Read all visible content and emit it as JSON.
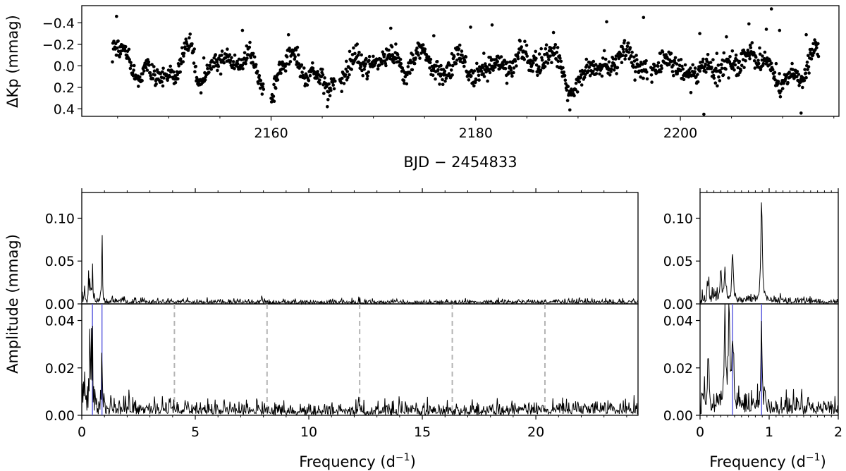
{
  "figure": {
    "lightcurve_ylabel": "ΔKp (mmag)",
    "lightcurve_xlabel": "BJD − 2454833",
    "amp_ylabel": "Amplitude (mmag)",
    "freq_xlabel_main": "Frequency (d⁻¹)",
    "freq_xlabel_zoom": "Frequency (d⁻¹)"
  },
  "chart_data": [
    {
      "type": "scatter",
      "panel": "lightcurve",
      "xlabel": "BJD − 2454833",
      "ylabel": "ΔKp (mmag)",
      "xlim": [
        2141.5,
        2215.5
      ],
      "ylim": [
        0.47,
        -0.56
      ],
      "y_inverted": true,
      "xticks": [
        2160,
        2180,
        2200
      ],
      "yticks": [
        -0.4,
        -0.2,
        0.0,
        0.2,
        0.4
      ],
      "ytick_labels": [
        "−0.4",
        "−0.2",
        "0.0",
        "0.2",
        "0.4"
      ],
      "marker_color": "#000000",
      "x_range_of_points": [
        2144.5,
        2213.5
      ],
      "anchor_points": {
        "x": [
          2144.5,
          2145.5,
          2147.0,
          2148.5,
          2150.5,
          2152.0,
          2153.0,
          2154.5,
          2156.0,
          2157.5,
          2159.0,
          2159.8,
          2161.0,
          2162.5,
          2164.0,
          2165.5,
          2167.5,
          2169.5,
          2171.0,
          2173.0,
          2175.0,
          2176.5,
          2178.5,
          2180.5,
          2182.0,
          2183.5,
          2185.5,
          2187.5,
          2189.0,
          2190.0,
          2191.5,
          2193.5,
          2195.5,
          2197.5,
          2199.5,
          2201.0,
          2202.5,
          2204.5,
          2206.5,
          2208.5,
          2210.0,
          2211.5,
          2213.5
        ],
        "y": [
          -0.16,
          -0.12,
          0.04,
          0.12,
          0.06,
          -0.14,
          0.08,
          0.0,
          -0.06,
          -0.08,
          0.15,
          0.27,
          0.02,
          -0.06,
          0.08,
          0.2,
          0.02,
          -0.06,
          -0.04,
          -0.02,
          -0.08,
          0.06,
          -0.04,
          0.06,
          0.0,
          -0.06,
          -0.04,
          -0.12,
          0.22,
          0.1,
          0.05,
          -0.05,
          -0.06,
          0.05,
          -0.08,
          0.16,
          -0.02,
          0.06,
          -0.12,
          -0.02,
          0.12,
          0.14,
          -0.22
        ]
      },
      "outliers": {
        "x": [
          2144.9,
          2157.2,
          2171.7,
          2175.9,
          2179.5,
          2181.6,
          2187.6,
          2192.8,
          2196.4,
          2201.9,
          2204.5,
          2206.7,
          2208.4,
          2208.9,
          2209.7,
          2212.3,
          2189.2,
          2211.8,
          2202.3,
          2165.5,
          2160.3
        ],
        "y": [
          -0.46,
          -0.33,
          -0.35,
          -0.28,
          -0.36,
          -0.38,
          -0.31,
          -0.41,
          -0.45,
          -0.3,
          -0.27,
          -0.39,
          -0.34,
          -0.53,
          -0.33,
          -0.29,
          0.41,
          0.44,
          0.45,
          0.38,
          0.33
        ]
      }
    },
    {
      "type": "line",
      "panel": "amplitude-spectrum",
      "ylabel": "Amplitude (mmag)",
      "xlim": [
        0,
        24.5
      ],
      "ylim": [
        0,
        0.13
      ],
      "yticks": [
        0.0,
        0.05,
        0.1
      ],
      "ytick_labels": [
        "0.00",
        "0.05",
        "0.10"
      ],
      "line_color": "#000000",
      "peaks": [
        {
          "freq": 0.89,
          "amp": 0.119
        },
        {
          "freq": 0.47,
          "amp": 0.054
        },
        {
          "freq": 0.36,
          "amp": 0.038
        },
        {
          "freq": 0.3,
          "amp": 0.035
        },
        {
          "freq": 0.12,
          "amp": 0.022
        }
      ],
      "noise_level": 0.003
    },
    {
      "type": "line",
      "panel": "prewhitened-residual-spectrum",
      "xlabel": "Frequency (d⁻¹)",
      "xlim": [
        0,
        24.5
      ],
      "ylim": [
        0,
        0.047
      ],
      "xticks": [
        0,
        5,
        10,
        15,
        20
      ],
      "yticks": [
        0.0,
        0.02,
        0.04
      ],
      "ytick_labels": [
        "0.00",
        "0.02",
        "0.04"
      ],
      "line_color": "#000000",
      "peaks": [
        {
          "freq": 0.36,
          "amp": 0.037
        },
        {
          "freq": 0.42,
          "amp": 0.039
        },
        {
          "freq": 0.47,
          "amp": 0.029
        },
        {
          "freq": 0.89,
          "amp": 0.028
        },
        {
          "freq": 0.12,
          "amp": 0.021
        }
      ],
      "noise_level": 0.003,
      "extracted_frequencies": [
        0.47,
        0.89
      ],
      "extracted_color": "#5555dd",
      "harmonic_markers": [
        4.08,
        8.16,
        12.24,
        16.32,
        20.4
      ],
      "harmonic_color": "#b4b4b4"
    },
    {
      "type": "line",
      "panel": "amplitude-spectrum-zoom",
      "xlim": [
        0,
        2
      ],
      "ylim": [
        0,
        0.13
      ],
      "yticks": [
        0.0,
        0.05,
        0.1
      ],
      "ytick_labels": [
        "0.00",
        "0.05",
        "0.10"
      ],
      "line_color": "#000000"
    },
    {
      "type": "line",
      "panel": "prewhitened-residual-spectrum-zoom",
      "xlabel": "Frequency (d⁻¹)",
      "xlim": [
        0,
        2
      ],
      "ylim": [
        0,
        0.047
      ],
      "xticks": [
        0,
        1,
        2
      ],
      "yticks": [
        0.0,
        0.02,
        0.04
      ],
      "ytick_labels": [
        "0.00",
        "0.02",
        "0.04"
      ],
      "line_color": "#000000",
      "extracted_frequencies": [
        0.47,
        0.89
      ],
      "extracted_color": "#5555dd"
    }
  ]
}
